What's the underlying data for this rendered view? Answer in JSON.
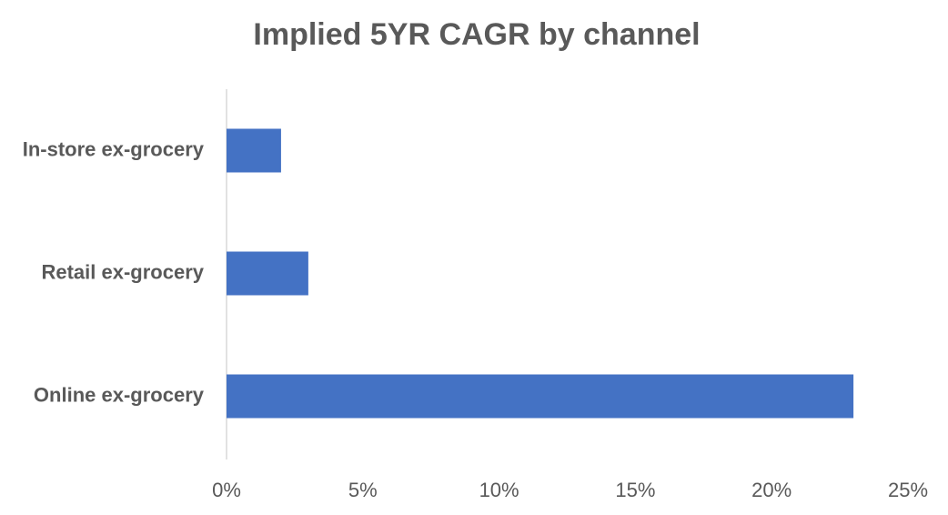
{
  "chart_data": {
    "type": "barh",
    "title": "Implied 5YR CAGR by channel",
    "categories": [
      "In-store ex-grocery",
      "Retail ex-grocery",
      "Online ex-grocery"
    ],
    "values": [
      2,
      3,
      23
    ],
    "color": "#4472c4",
    "xlim": [
      0,
      25
    ],
    "xticks": [
      {
        "value": 0,
        "label": "0%"
      },
      {
        "value": 5,
        "label": "5%"
      },
      {
        "value": 10,
        "label": "10%"
      },
      {
        "value": 15,
        "label": "15%"
      },
      {
        "value": 20,
        "label": "20%"
      },
      {
        "value": 25,
        "label": "25%"
      }
    ],
    "grid": false
  }
}
